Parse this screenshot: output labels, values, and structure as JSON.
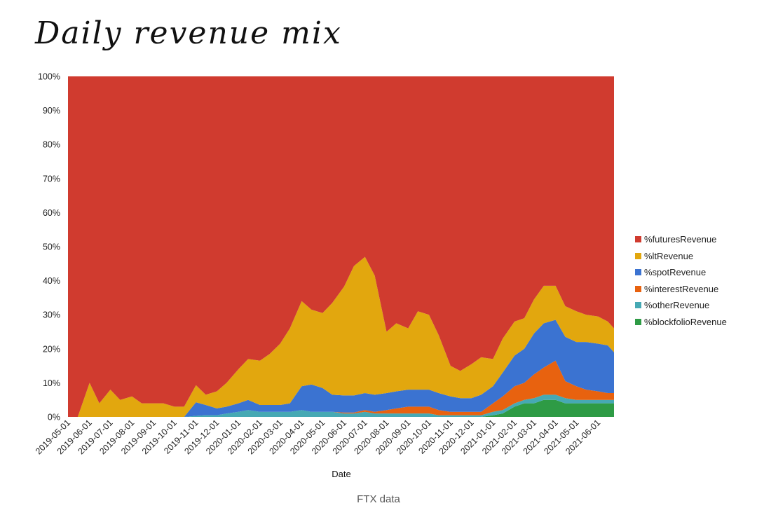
{
  "header": {
    "title": "Daily revenue mix"
  },
  "caption": "FTX data",
  "chart_data": {
    "type": "area",
    "stacked": true,
    "normalized_percent": true,
    "xlabel": "Date",
    "ylabel": "",
    "ylim": [
      0,
      100
    ],
    "y_ticks": [
      "0%",
      "10%",
      "20%",
      "30%",
      "40%",
      "50%",
      "60%",
      "70%",
      "80%",
      "90%",
      "100%"
    ],
    "x_ticks": [
      "2019-05-01",
      "2019-06-01",
      "2019-07-01",
      "2019-08-01",
      "2019-09-01",
      "2019-10-01",
      "2019-11-01",
      "2019-12-01",
      "2020-01-01",
      "2020-02-01",
      "2020-03-01",
      "2020-04-01",
      "2020-05-01",
      "2020-06-01",
      "2020-07-01",
      "2020-08-01",
      "2020-09-01",
      "2020-10-01",
      "2020-11-01",
      "2020-12-01",
      "2021-01-01",
      "2021-02-01",
      "2021-03-01",
      "2021-04-01",
      "2021-05-01",
      "2021-06-01"
    ],
    "legend_position": "right",
    "x": [
      "2019-05-01",
      "2019-05-15",
      "2019-06-01",
      "2019-06-15",
      "2019-07-01",
      "2019-07-15",
      "2019-08-01",
      "2019-08-15",
      "2019-09-01",
      "2019-09-15",
      "2019-10-01",
      "2019-10-15",
      "2019-11-01",
      "2019-11-15",
      "2019-12-01",
      "2019-12-15",
      "2020-01-01",
      "2020-01-15",
      "2020-02-01",
      "2020-02-15",
      "2020-03-01",
      "2020-03-15",
      "2020-04-01",
      "2020-04-15",
      "2020-05-01",
      "2020-05-15",
      "2020-06-01",
      "2020-06-15",
      "2020-07-01",
      "2020-07-15",
      "2020-08-01",
      "2020-08-15",
      "2020-09-01",
      "2020-09-15",
      "2020-10-01",
      "2020-10-15",
      "2020-11-01",
      "2020-11-15",
      "2020-12-01",
      "2020-12-15",
      "2021-01-01",
      "2021-01-15",
      "2021-02-01",
      "2021-02-15",
      "2021-03-01",
      "2021-03-15",
      "2021-04-01",
      "2021-04-15",
      "2021-05-01",
      "2021-05-15",
      "2021-06-01",
      "2021-06-15",
      "2021-06-24"
    ],
    "series": [
      {
        "name": "%blockfolioRevenue",
        "color": "#2e9b45",
        "values": [
          0,
          0,
          0,
          0,
          0,
          0,
          0,
          0,
          0,
          0,
          0,
          0,
          0,
          0,
          0,
          0,
          0,
          0,
          0,
          0,
          0,
          0,
          0,
          0,
          0,
          0,
          0,
          0,
          0,
          0,
          0,
          0,
          0,
          0,
          0,
          0,
          0,
          0,
          0,
          0,
          0.5,
          1,
          3,
          4,
          4,
          5,
          5,
          4,
          4,
          4,
          4,
          4,
          4
        ]
      },
      {
        "name": "%otherRevenue",
        "color": "#46a9b4",
        "values": [
          0,
          0,
          0,
          0,
          0,
          0,
          0,
          0,
          0,
          0,
          0,
          0,
          0.3,
          0.5,
          0.5,
          1,
          1.5,
          2,
          1.5,
          1.5,
          1.5,
          1.5,
          2,
          1.5,
          1.5,
          1.5,
          1,
          1,
          1.5,
          1,
          1,
          1,
          1,
          1,
          1,
          0.5,
          0.5,
          0.5,
          0.5,
          0.5,
          1,
          1,
          1,
          1,
          1.5,
          1.5,
          1.5,
          1.5,
          1,
          1,
          1,
          1,
          1
        ]
      },
      {
        "name": "%interestRevenue",
        "color": "#e8620f",
        "values": [
          0,
          0,
          0,
          0,
          0,
          0,
          0,
          0,
          0,
          0,
          0,
          0,
          0,
          0,
          0,
          0,
          0,
          0,
          0,
          0,
          0,
          0,
          0,
          0,
          0,
          0,
          0.3,
          0.3,
          0.5,
          0.5,
          1,
          1.5,
          2,
          2,
          2,
          1.5,
          1,
          1,
          1,
          1,
          2.5,
          4,
          5,
          5,
          7,
          8,
          10,
          5,
          4,
          3,
          2.5,
          2,
          2
        ]
      },
      {
        "name": "%spotRevenue",
        "color": "#3b73d1",
        "values": [
          0,
          0,
          0,
          0,
          0,
          0,
          0,
          0,
          0,
          0,
          0,
          0,
          4,
          3,
          2,
          2,
          2.5,
          3,
          2,
          2,
          2,
          2.5,
          7,
          8,
          7,
          5,
          5,
          5,
          5,
          5,
          5,
          5,
          5,
          5,
          5,
          5,
          4.5,
          4,
          4,
          5,
          5,
          7,
          9,
          10,
          12,
          13,
          12,
          13,
          13,
          14,
          14,
          14,
          12
        ]
      },
      {
        "name": "%ltRevenue",
        "color": "#e2a70e",
        "values": [
          0,
          0,
          10,
          4,
          8,
          5,
          6,
          4,
          4,
          4,
          3,
          3,
          5,
          3,
          5,
          7,
          10,
          12,
          13,
          15,
          18,
          22,
          25,
          22,
          22,
          27,
          32,
          38,
          40,
          35,
          18,
          20,
          18,
          23,
          22,
          17,
          9,
          8,
          10,
          11,
          8,
          10,
          10,
          9,
          10,
          11,
          10,
          9,
          9,
          8,
          8,
          7,
          7
        ]
      },
      {
        "name": "%futuresRevenue",
        "color": "#d03b2f",
        "values": [
          100,
          100,
          90,
          96,
          92,
          95,
          94,
          96,
          96,
          96,
          97,
          97,
          90.7,
          93.5,
          92.5,
          90,
          86,
          83,
          83.5,
          81.5,
          78.5,
          74,
          66,
          68.5,
          69.5,
          66.5,
          61.7,
          55.7,
          53,
          58.5,
          75,
          72.5,
          74,
          69,
          70,
          76,
          85,
          86.5,
          84.5,
          82.5,
          83,
          77,
          72,
          71,
          65.5,
          61.5,
          61.5,
          67.5,
          69,
          70,
          70.5,
          72,
          74
        ]
      }
    ]
  }
}
